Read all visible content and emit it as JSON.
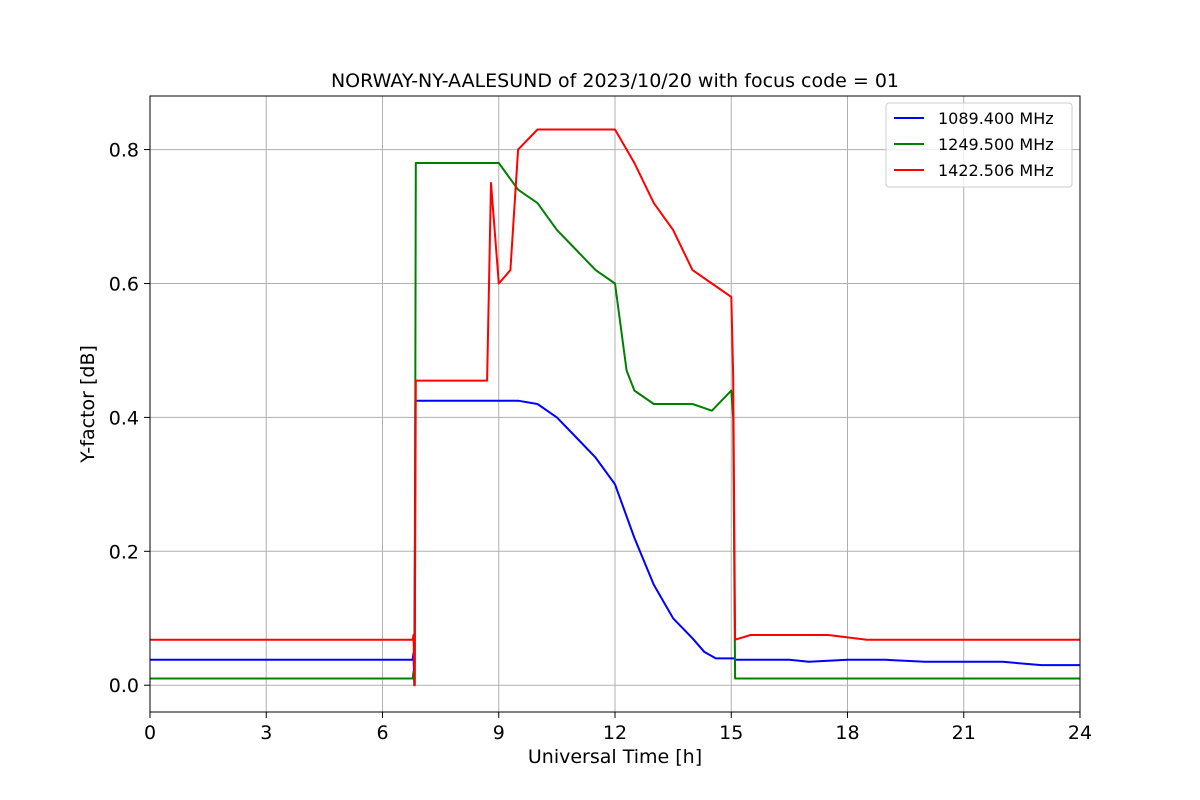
{
  "chart_data": {
    "type": "line",
    "title": "NORWAY-NY-AALESUND of 2023/10/20 with focus code = 01",
    "xlabel": "Universal Time [h]",
    "ylabel": "Y-factor [dB]",
    "xlim": [
      0,
      24
    ],
    "ylim": [
      -0.04,
      0.88
    ],
    "x_ticks": [
      0,
      3,
      6,
      9,
      12,
      15,
      18,
      21,
      24
    ],
    "y_ticks": [
      0.0,
      0.2,
      0.4,
      0.6,
      0.8
    ],
    "x_tick_labels": [
      "0",
      "3",
      "6",
      "9",
      "12",
      "15",
      "18",
      "21",
      "24"
    ],
    "y_tick_labels": [
      "0.0",
      "0.2",
      "0.4",
      "0.6",
      "0.8"
    ],
    "grid": true,
    "legend_position": "top-right",
    "series": [
      {
        "name": "1089.400 MHz",
        "color": "#0000ff",
        "x": [
          0,
          6.78,
          6.8,
          6.82,
          6.85,
          9.5,
          10.0,
          10.5,
          11.0,
          11.5,
          12.0,
          12.5,
          13.0,
          13.5,
          14.0,
          14.3,
          14.6,
          15.0,
          15.08,
          15.1,
          15.5,
          16.5,
          17.0,
          18.0,
          19.0,
          20.0,
          21.0,
          22.0,
          23.0,
          24.0
        ],
        "y": [
          0.038,
          0.038,
          0.048,
          0.0,
          0.425,
          0.425,
          0.42,
          0.4,
          0.37,
          0.34,
          0.3,
          0.22,
          0.15,
          0.1,
          0.07,
          0.05,
          0.04,
          0.04,
          0.04,
          0.038,
          0.038,
          0.038,
          0.035,
          0.038,
          0.038,
          0.035,
          0.035,
          0.035,
          0.03,
          0.03
        ]
      },
      {
        "name": "1249.500 MHz",
        "color": "#008000",
        "x": [
          0,
          6.78,
          6.8,
          6.83,
          6.86,
          7.2,
          8.0,
          9.0,
          9.5,
          10.0,
          10.5,
          11.0,
          11.5,
          12.0,
          12.3,
          12.5,
          13.0,
          13.5,
          14.0,
          14.5,
          15.0,
          15.05,
          15.1,
          16.0,
          18.0,
          20.0,
          22.0,
          24.0
        ],
        "y": [
          0.01,
          0.01,
          0.02,
          0.0,
          0.78,
          0.78,
          0.78,
          0.78,
          0.74,
          0.72,
          0.68,
          0.65,
          0.62,
          0.6,
          0.47,
          0.44,
          0.42,
          0.42,
          0.42,
          0.41,
          0.44,
          0.4,
          0.01,
          0.01,
          0.01,
          0.01,
          0.01,
          0.01
        ]
      },
      {
        "name": "1422.506 MHz",
        "color": "#ff0000",
        "x": [
          0,
          6.78,
          6.8,
          6.83,
          6.86,
          7.5,
          8.0,
          8.7,
          8.8,
          9.0,
          9.3,
          9.5,
          10.0,
          10.5,
          11.0,
          11.5,
          12.0,
          12.5,
          13.0,
          13.5,
          14.0,
          14.5,
          15.0,
          15.05,
          15.1,
          15.5,
          16.5,
          17.5,
          18.5,
          19.0,
          21.0,
          24.0
        ],
        "y": [
          0.068,
          0.068,
          0.075,
          0.0,
          0.455,
          0.455,
          0.455,
          0.455,
          0.75,
          0.6,
          0.62,
          0.8,
          0.83,
          0.83,
          0.83,
          0.83,
          0.83,
          0.78,
          0.72,
          0.68,
          0.62,
          0.6,
          0.58,
          0.46,
          0.068,
          0.075,
          0.075,
          0.075,
          0.068,
          0.068,
          0.068,
          0.068
        ]
      }
    ]
  }
}
